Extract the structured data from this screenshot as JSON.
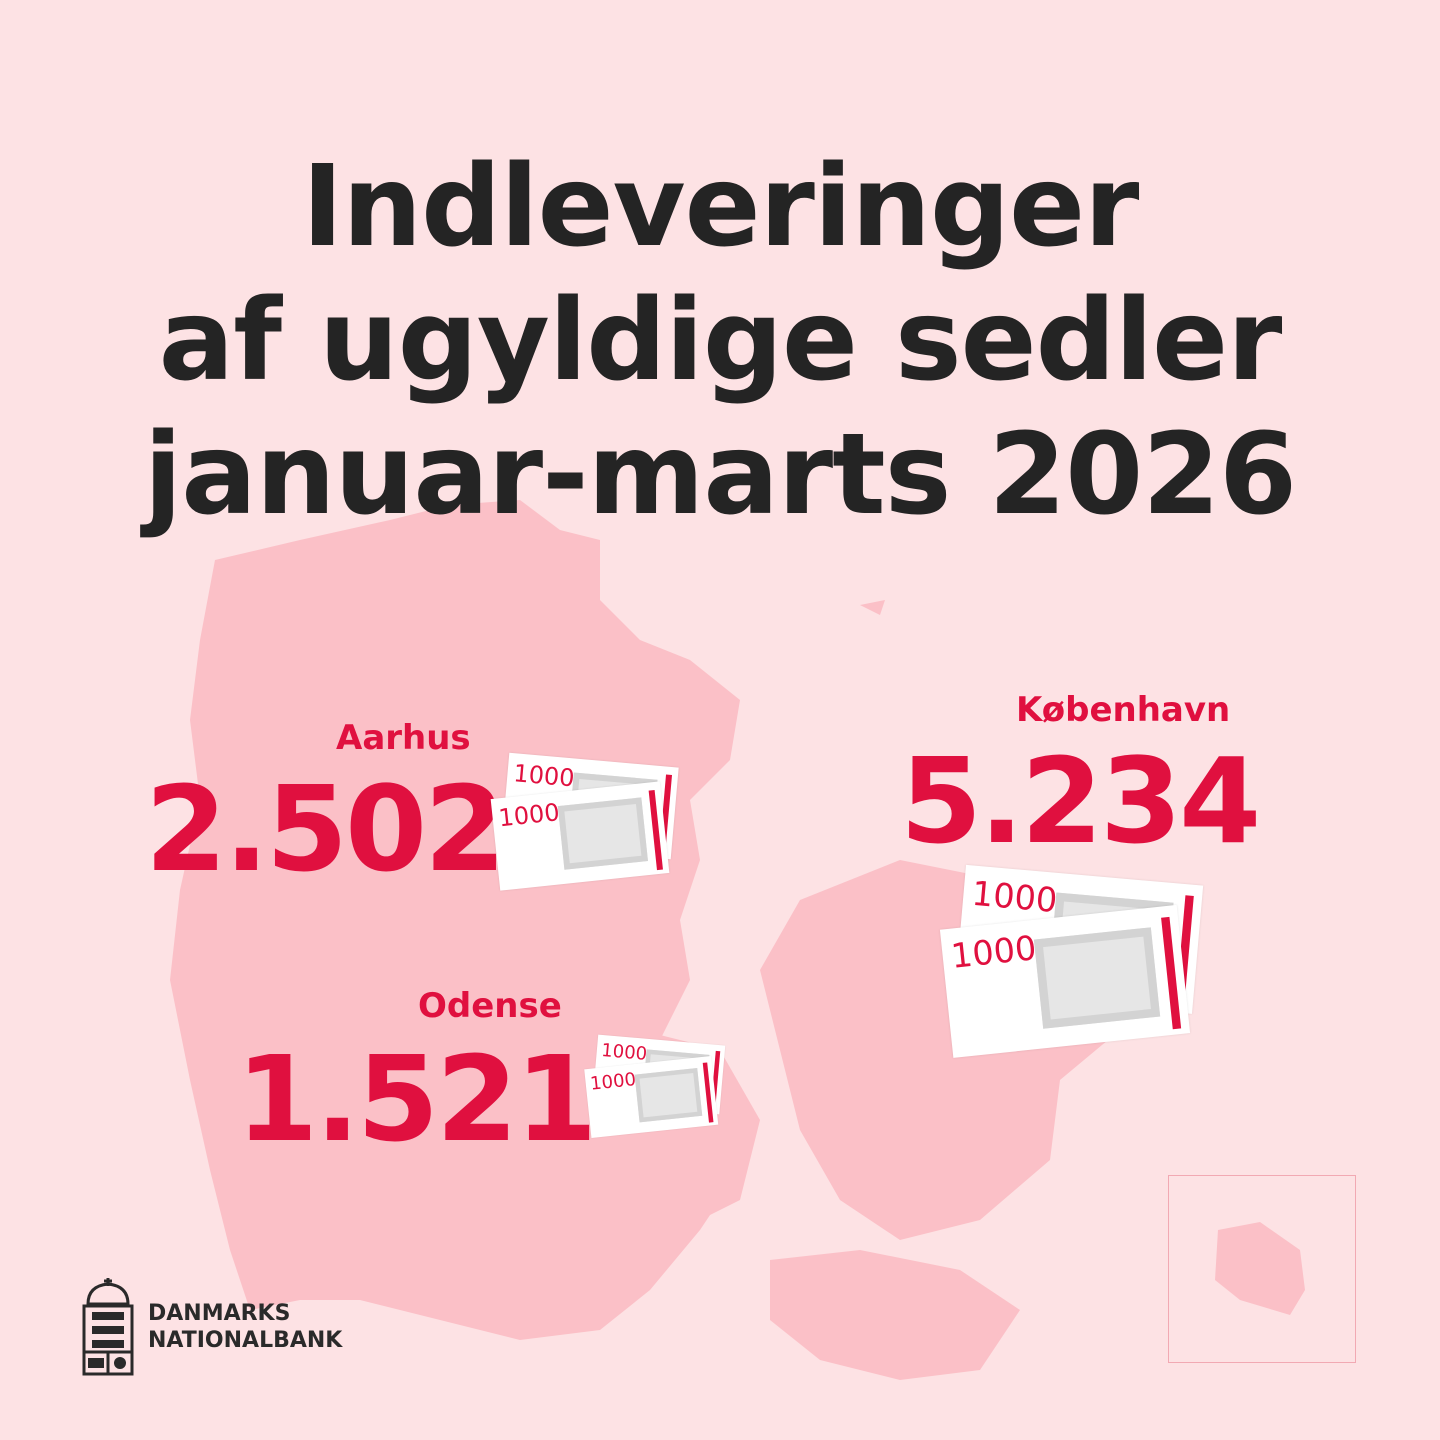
{
  "title": {
    "line1": "Indleveringer",
    "line2": "af ugyldige sedler",
    "line3": "januar-marts 2026"
  },
  "cities": [
    {
      "name": "Aarhus",
      "value": "2.502"
    },
    {
      "name": "Odense",
      "value": "1.521"
    },
    {
      "name": "København",
      "value": "5.234"
    }
  ],
  "banknote": {
    "denomination": "1000"
  },
  "logo": {
    "line1": "DANMARKS",
    "line2": "NATIONALBANK"
  },
  "colors": {
    "background": "#fde2e4",
    "map": "#fbc0c7",
    "accent": "#e0103f",
    "text": "#242424"
  }
}
